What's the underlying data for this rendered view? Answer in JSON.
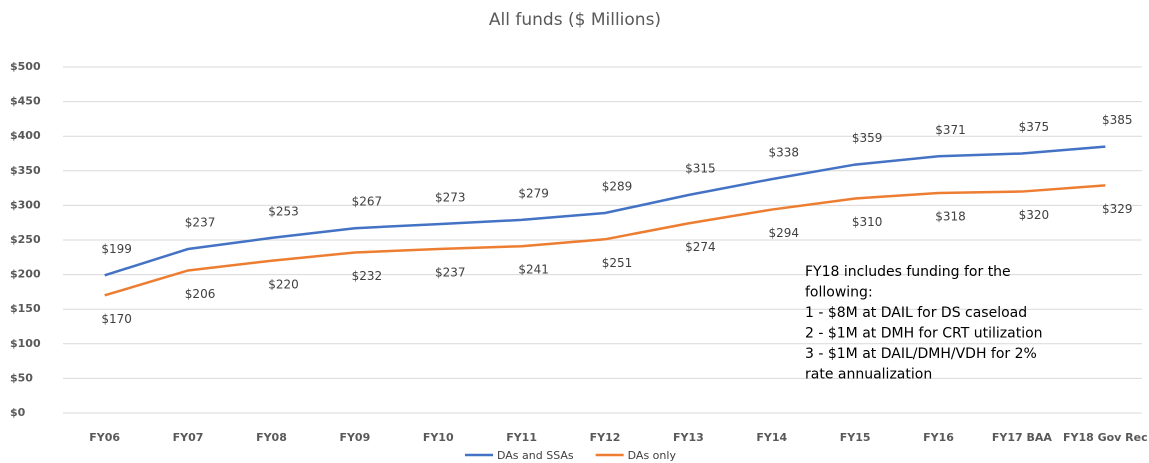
{
  "chart_data": {
    "type": "line",
    "title": "All funds ($ Millions)",
    "categories": [
      "FY06",
      "FY07",
      "FY08",
      "FY09",
      "FY10",
      "FY11",
      "FY12",
      "FY13",
      "FY14",
      "FY15",
      "FY16",
      "FY17 BAA",
      "FY18 Gov Rec"
    ],
    "series": [
      {
        "name": "DAs and SSAs",
        "color": "#4472c4",
        "values": [
          199,
          237,
          253,
          267,
          273,
          279,
          289,
          315,
          338,
          359,
          371,
          375,
          385
        ],
        "value_labels": [
          "$199",
          "$237",
          "$253",
          "$267",
          "$273",
          "$279",
          "$289",
          "$315",
          "$338",
          "$359",
          "$371",
          "$375",
          "$385"
        ]
      },
      {
        "name": "DAs only",
        "color": "#ed7d31",
        "values": [
          170,
          206,
          220,
          232,
          237,
          241,
          251,
          274,
          294,
          310,
          318,
          320,
          329
        ],
        "value_labels": [
          "$170",
          "$206",
          "$220",
          "$232",
          "$237",
          "$241",
          "$251",
          "$274",
          "$294",
          "$310",
          "$318",
          "$320",
          "$329"
        ]
      }
    ],
    "ylim": [
      0,
      500
    ],
    "yticks": [
      {
        "value": 0,
        "label": "$0"
      },
      {
        "value": 50,
        "label": "$50"
      },
      {
        "value": 100,
        "label": "$100"
      },
      {
        "value": 150,
        "label": "$150"
      },
      {
        "value": 200,
        "label": "$200"
      },
      {
        "value": 250,
        "label": "$250"
      },
      {
        "value": 300,
        "label": "$300"
      },
      {
        "value": 350,
        "label": "$350"
      },
      {
        "value": 400,
        "label": "$400"
      },
      {
        "value": 450,
        "label": "$450"
      },
      {
        "value": 500,
        "label": "$500"
      }
    ],
    "grid": true,
    "legend": "bottom",
    "annotation": [
      "FY18 includes funding for the",
      "following:",
      "1 - $8M at DAIL for DS caseload",
      "2 - $1M at DMH for CRT utilization",
      "3 - $1M at DAIL/DMH/VDH for 2%",
      "rate annualization"
    ]
  }
}
